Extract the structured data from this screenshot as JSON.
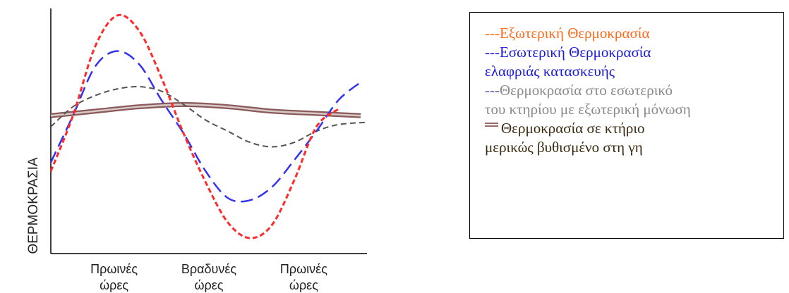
{
  "chart_data": {
    "type": "line",
    "ylabel": "ΘΕΡΜΟΚΡΑΣΙΑ",
    "xlabel": "",
    "x_ticks": [
      {
        "x": 0.2,
        "lines": [
          "Πρωινές",
          "ώρες"
        ]
      },
      {
        "x": 0.5,
        "lines": [
          "Βραδυνές",
          "ώρες"
        ]
      },
      {
        "x": 0.8,
        "lines": [
          "Πρωινές",
          "ώρες"
        ]
      }
    ],
    "xlim": [
      0,
      1
    ],
    "ylim": [
      0,
      1
    ],
    "grid": false,
    "legend_placement": "right",
    "series": [
      {
        "name": "Εξωτερική Θερμοκρασία",
        "color": "#ff2a2a",
        "style": "dashed",
        "x": [
          0,
          0.07,
          0.14,
          0.21,
          0.28,
          0.35,
          0.42,
          0.49,
          0.56,
          0.63,
          0.7,
          0.77,
          0.84,
          0.91
        ],
        "y": [
          0.3,
          0.55,
          0.86,
          1.0,
          0.93,
          0.72,
          0.47,
          0.25,
          0.07,
          0.0,
          0.06,
          0.26,
          0.5,
          0.58
        ]
      },
      {
        "name": "Εσωτερική Θερμοκρασία ελαφριάς κατασκευής",
        "color": "#3333ee",
        "style": "dashed",
        "x": [
          0,
          0.07,
          0.14,
          0.21,
          0.28,
          0.35,
          0.42,
          0.49,
          0.56,
          0.63,
          0.7,
          0.77,
          0.84,
          0.91,
          0.98
        ],
        "y": [
          0.34,
          0.55,
          0.77,
          0.84,
          0.78,
          0.62,
          0.47,
          0.3,
          0.18,
          0.17,
          0.23,
          0.35,
          0.48,
          0.62,
          0.7
        ]
      },
      {
        "name": "Θερμοκρασία στο εσωτερικό του κτηρίου με εξωτερική μόνωση",
        "color": "#555555",
        "style": "dashed",
        "x": [
          0,
          0.07,
          0.14,
          0.21,
          0.28,
          0.35,
          0.42,
          0.49,
          0.56,
          0.63,
          0.7,
          0.77,
          0.84,
          0.91,
          1.0
        ],
        "y": [
          0.5,
          0.59,
          0.64,
          0.67,
          0.68,
          0.66,
          0.6,
          0.53,
          0.48,
          0.43,
          0.41,
          0.43,
          0.48,
          0.51,
          0.52
        ]
      },
      {
        "name": "Θερμοκρασία σε κτήριο μερικώς βυθισμένο στη γη",
        "color": "#8a5a5a",
        "style": "double",
        "x": [
          0,
          0.14,
          0.28,
          0.42,
          0.56,
          0.7,
          0.84,
          0.98
        ],
        "y": [
          0.55,
          0.57,
          0.59,
          0.6,
          0.59,
          0.57,
          0.56,
          0.55
        ]
      }
    ]
  },
  "legend": {
    "entries": [
      {
        "marker": "---",
        "text": "Εξωτερική Θερμοκρασία",
        "marker_color": "#ff6a1a",
        "text_color": "#ff6a1a"
      },
      {
        "marker": "---",
        "text": "Εσωτερική Θερμοκρασία",
        "marker_color": "#1a1adc",
        "text_color": "#1a1adc"
      },
      {
        "marker": "",
        "text": "ελαφριάς κατασκευής",
        "marker_color": "#1a1adc",
        "text_color": "#1a1adc"
      },
      {
        "marker": "---",
        "text": "Θερμοκρασία στο εσωτερικό",
        "marker_color": "#5a5a9a",
        "text_color": "#8a8a8a"
      },
      {
        "marker": "",
        "text": "του κτηρίου με εξωτερική μόνωση",
        "marker_color": "#8a8a8a",
        "text_color": "#8a8a8a"
      },
      {
        "marker": "double",
        "text": "Θερμοκρασία σε κτήριο",
        "marker_color": "#9a6a6a",
        "text_color": "#3a2a10"
      },
      {
        "marker": "",
        "text": "μερικώς βυθισμένο στη γη",
        "marker_color": "#3a2a10",
        "text_color": "#3a2a10"
      }
    ]
  }
}
